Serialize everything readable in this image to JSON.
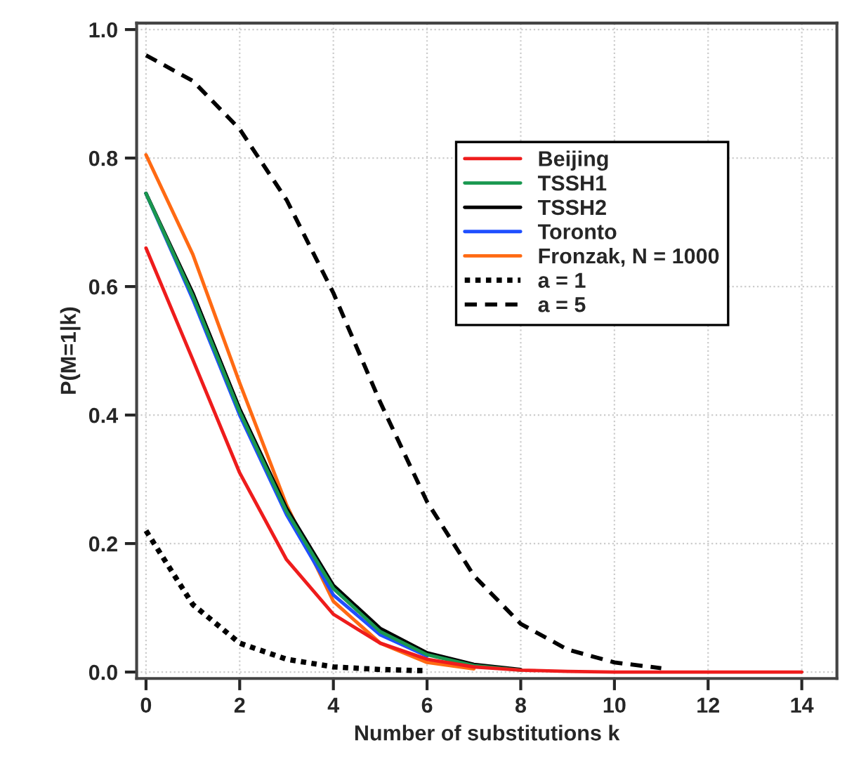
{
  "chart_data": {
    "type": "line",
    "xlabel": "Number of substitutions k",
    "ylabel": "P(M=1|k)",
    "x": [
      0,
      1,
      2,
      3,
      4,
      5,
      6,
      7,
      8,
      9,
      10,
      11,
      12,
      13,
      14
    ],
    "xlim": [
      -0.2,
      14.75
    ],
    "ylim": [
      -0.01,
      1.01
    ],
    "xticks": [
      0,
      2,
      4,
      6,
      8,
      10,
      12,
      14
    ],
    "yticks": [
      {
        "value": 0,
        "label": "0.0"
      },
      {
        "value": 0.2,
        "label": "0.2"
      },
      {
        "value": 0.4,
        "label": "0.4"
      },
      {
        "value": 0.6,
        "label": "0.6"
      },
      {
        "value": 0.8,
        "label": "0.8"
      },
      {
        "value": 1,
        "label": "1.0"
      }
    ],
    "grid": true,
    "legend": "top right",
    "series": [
      {
        "name": "Beijing",
        "color": "#ee1c1c",
        "line_style": "solid",
        "values": [
          0.66,
          0.486,
          0.31,
          0.175,
          0.09,
          0.045,
          0.02,
          0.008,
          0.003,
          0.001,
          0,
          0,
          0,
          0,
          0
        ]
      },
      {
        "name": "TSSH1",
        "color": "#1a9850",
        "line_style": "solid",
        "values": [
          0.745,
          0.585,
          0.405,
          0.25,
          0.13,
          0.063,
          0.027,
          0.01,
          0.003,
          null,
          null,
          null,
          null,
          null,
          null
        ]
      },
      {
        "name": "TSSH2",
        "color": "#000000",
        "line_style": "solid",
        "values": [
          0.745,
          0.59,
          0.41,
          0.255,
          0.135,
          0.068,
          0.03,
          0.012,
          0.004,
          null,
          null,
          null,
          null,
          null,
          null
        ]
      },
      {
        "name": "Toronto",
        "color": "#1f4fff",
        "line_style": "solid",
        "values": [
          0.745,
          0.58,
          0.4,
          0.245,
          0.12,
          0.058,
          0.025,
          null,
          null,
          null,
          null,
          null,
          null,
          null,
          null
        ]
      },
      {
        "name": "Fronzak, N = 1000",
        "color": "#ff6a13",
        "line_style": "solid",
        "values": [
          0.805,
          0.65,
          0.45,
          0.26,
          0.11,
          0.045,
          0.015,
          0.005,
          null,
          null,
          null,
          null,
          null,
          null,
          null
        ]
      },
      {
        "name": "a = 1",
        "color": "#000000",
        "line_style": "dotted",
        "values": [
          0.22,
          0.105,
          0.045,
          0.02,
          0.008,
          0.004,
          0.002,
          null,
          null,
          null,
          null,
          null,
          null,
          null,
          null
        ]
      },
      {
        "name": "a = 5",
        "color": "#000000",
        "line_style": "dashed",
        "values": [
          0.96,
          0.92,
          0.845,
          0.735,
          0.59,
          0.42,
          0.265,
          0.15,
          0.075,
          0.035,
          0.015,
          0.006,
          null,
          null,
          null
        ]
      }
    ]
  }
}
